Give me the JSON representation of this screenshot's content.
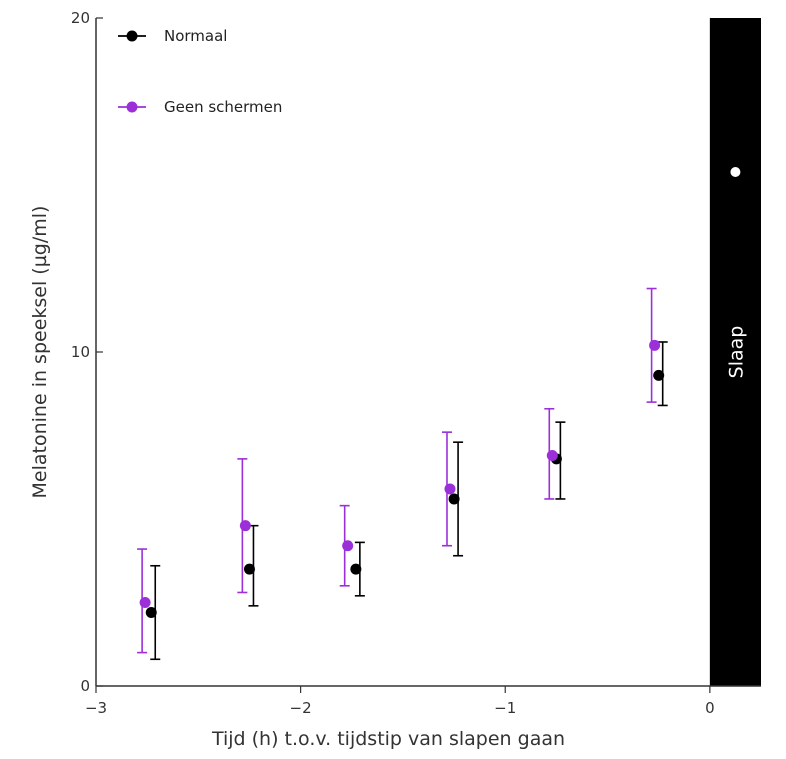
{
  "chart_data": {
    "type": "scatter",
    "xlabel": "Tijd (h) t.o.v. tijdstip van slapen gaan",
    "ylabel": "Melatonine in speeksel (µg/ml)",
    "xlim": [
      -3,
      0.25
    ],
    "ylim": [
      0,
      20
    ],
    "x_ticks": [
      -3,
      -2,
      -1,
      0
    ],
    "x_tick_labels": [
      "−3",
      "−2",
      "−1",
      "0"
    ],
    "y_ticks": [
      0,
      10,
      20
    ],
    "y_tick_labels": [
      "0",
      "10",
      "20"
    ],
    "grid": false,
    "legend_position": "top-left",
    "shaded_region": {
      "x_from": 0,
      "x_to": 0.25,
      "label": "Slaap",
      "color": "#000000"
    },
    "series": [
      {
        "name": "Normaal",
        "color": "#000000",
        "x": [
          -2.73,
          -2.25,
          -1.73,
          -1.25,
          -0.75,
          -0.25
        ],
        "y": [
          2.2,
          3.5,
          3.5,
          5.6,
          6.8,
          9.3
        ],
        "err_low": [
          0.8,
          2.4,
          2.7,
          3.9,
          5.6,
          8.4
        ],
        "err_high": [
          3.6,
          4.8,
          4.3,
          7.3,
          7.9,
          10.3
        ]
      },
      {
        "name": "Geen schermen",
        "color": "#9b30d9",
        "x": [
          -2.76,
          -2.27,
          -1.77,
          -1.27,
          -0.77,
          -0.27
        ],
        "y": [
          2.5,
          4.8,
          4.2,
          5.9,
          6.9,
          10.2
        ],
        "err_low": [
          1.0,
          2.8,
          3.0,
          4.2,
          5.6,
          8.5
        ],
        "err_high": [
          4.1,
          6.8,
          5.4,
          7.6,
          8.3,
          11.9
        ]
      }
    ]
  }
}
